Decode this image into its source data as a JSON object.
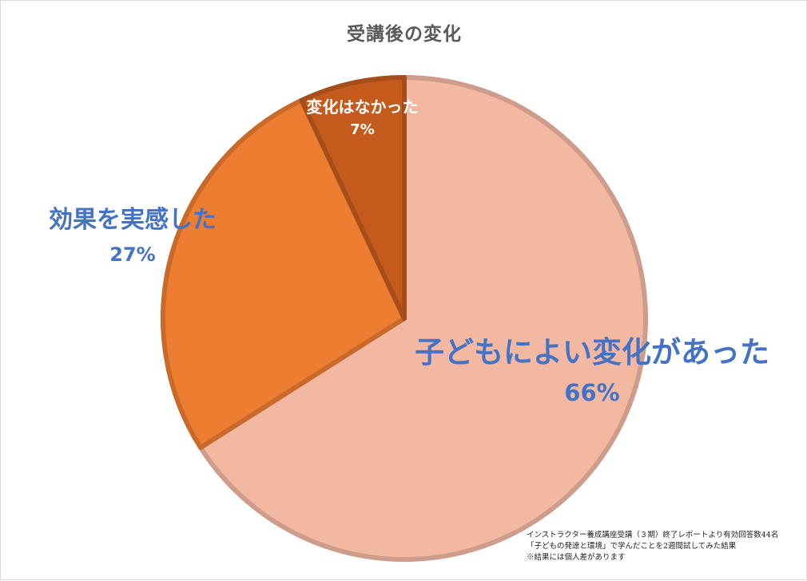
{
  "chart_data": {
    "type": "pie",
    "title": "受講後の変化",
    "slices": [
      {
        "name": "子どもによい変化があった",
        "value": 66,
        "label": "66%",
        "color": "#f2b8a2"
      },
      {
        "name": "効果を実感した",
        "value": 27,
        "label": "27%",
        "color": "#ed7d31"
      },
      {
        "name": "変化はなかった",
        "value": 7,
        "label": "7%",
        "color": "#c55a1d"
      }
    ],
    "start": "top",
    "direction": "clockwise",
    "legend": "none"
  },
  "footnote": {
    "line1": "インストラクター養成講座受講（３期）終了レポートより有効回答数44名",
    "line2": "「子どもの発達と環境」で学んだことを2週間試してみた結果",
    "line3": "※結果には個人差があります"
  }
}
